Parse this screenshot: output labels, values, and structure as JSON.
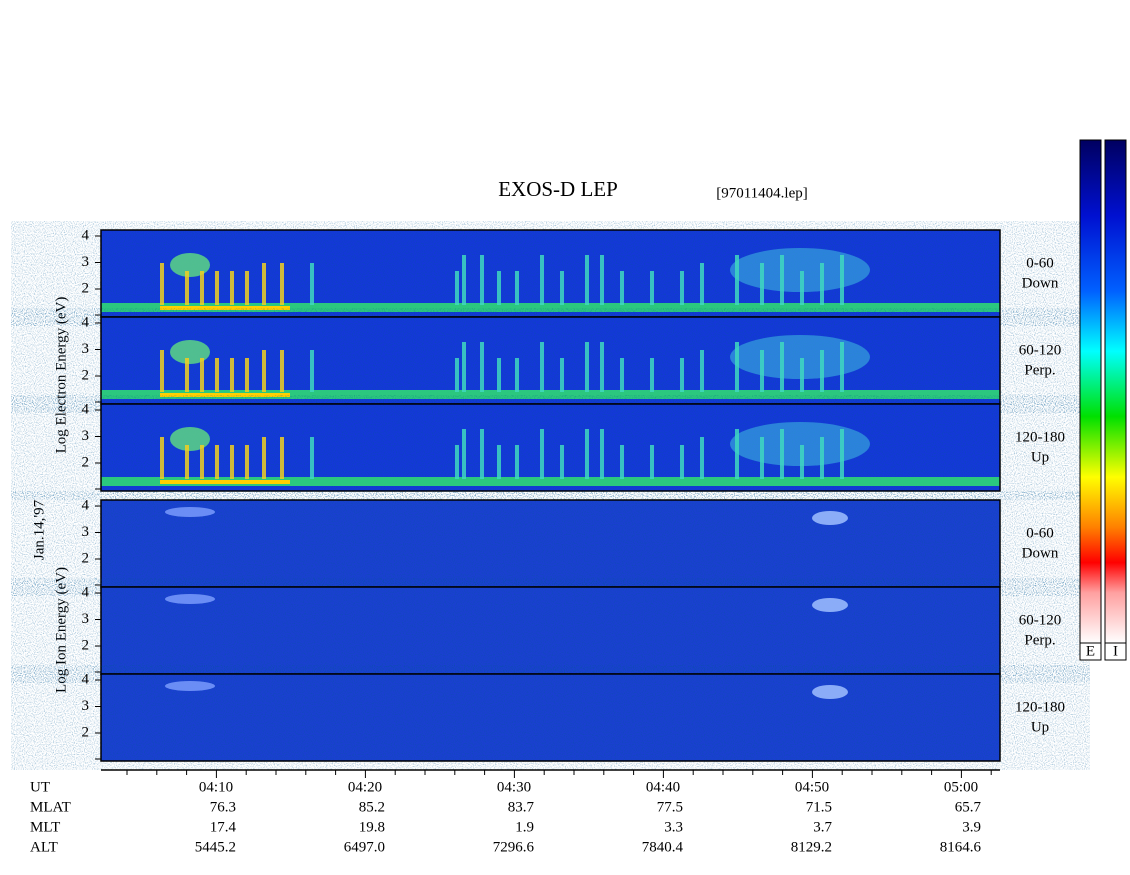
{
  "header": {
    "title": "EXOS-D LEP",
    "file": "[97011404.lep]"
  },
  "date": "Jan.14,'97",
  "electron": {
    "axis_label": "Log Electron Energy (eV)",
    "panels": [
      {
        "angle": "0-60",
        "direction": "Down",
        "ticks": [
          "4",
          "3",
          "2"
        ]
      },
      {
        "angle": "60-120",
        "direction": "Perp.",
        "ticks": [
          "4",
          "3",
          "2"
        ]
      },
      {
        "angle": "120-180",
        "direction": "Up",
        "ticks": [
          "4",
          "3",
          "2"
        ]
      }
    ]
  },
  "ion": {
    "axis_label": "Log Ion Energy (eV)",
    "panels": [
      {
        "angle": "0-60",
        "direction": "Down",
        "ticks": [
          "4",
          "3",
          "2"
        ]
      },
      {
        "angle": "60-120",
        "direction": "Perp.",
        "ticks": [
          "4",
          "3",
          "2"
        ]
      },
      {
        "angle": "120-180",
        "direction": "Up",
        "ticks": [
          "4",
          "3",
          "2"
        ]
      }
    ]
  },
  "colorbars": [
    "E",
    "I"
  ],
  "footer": {
    "row_labels": [
      "UT",
      "MLAT",
      "MLT",
      "ALT"
    ],
    "columns": [
      [
        "04:10",
        "76.3",
        "17.4",
        "5445.2"
      ],
      [
        "04:20",
        "85.2",
        "19.8",
        "6497.0"
      ],
      [
        "04:30",
        "83.7",
        "1.9",
        "7296.6"
      ],
      [
        "04:40",
        "77.5",
        "3.3",
        "7840.4"
      ],
      [
        "04:50",
        "71.5",
        "3.7",
        "8129.2"
      ],
      [
        "05:00",
        "65.7",
        "3.9",
        "8164.6"
      ]
    ]
  }
}
